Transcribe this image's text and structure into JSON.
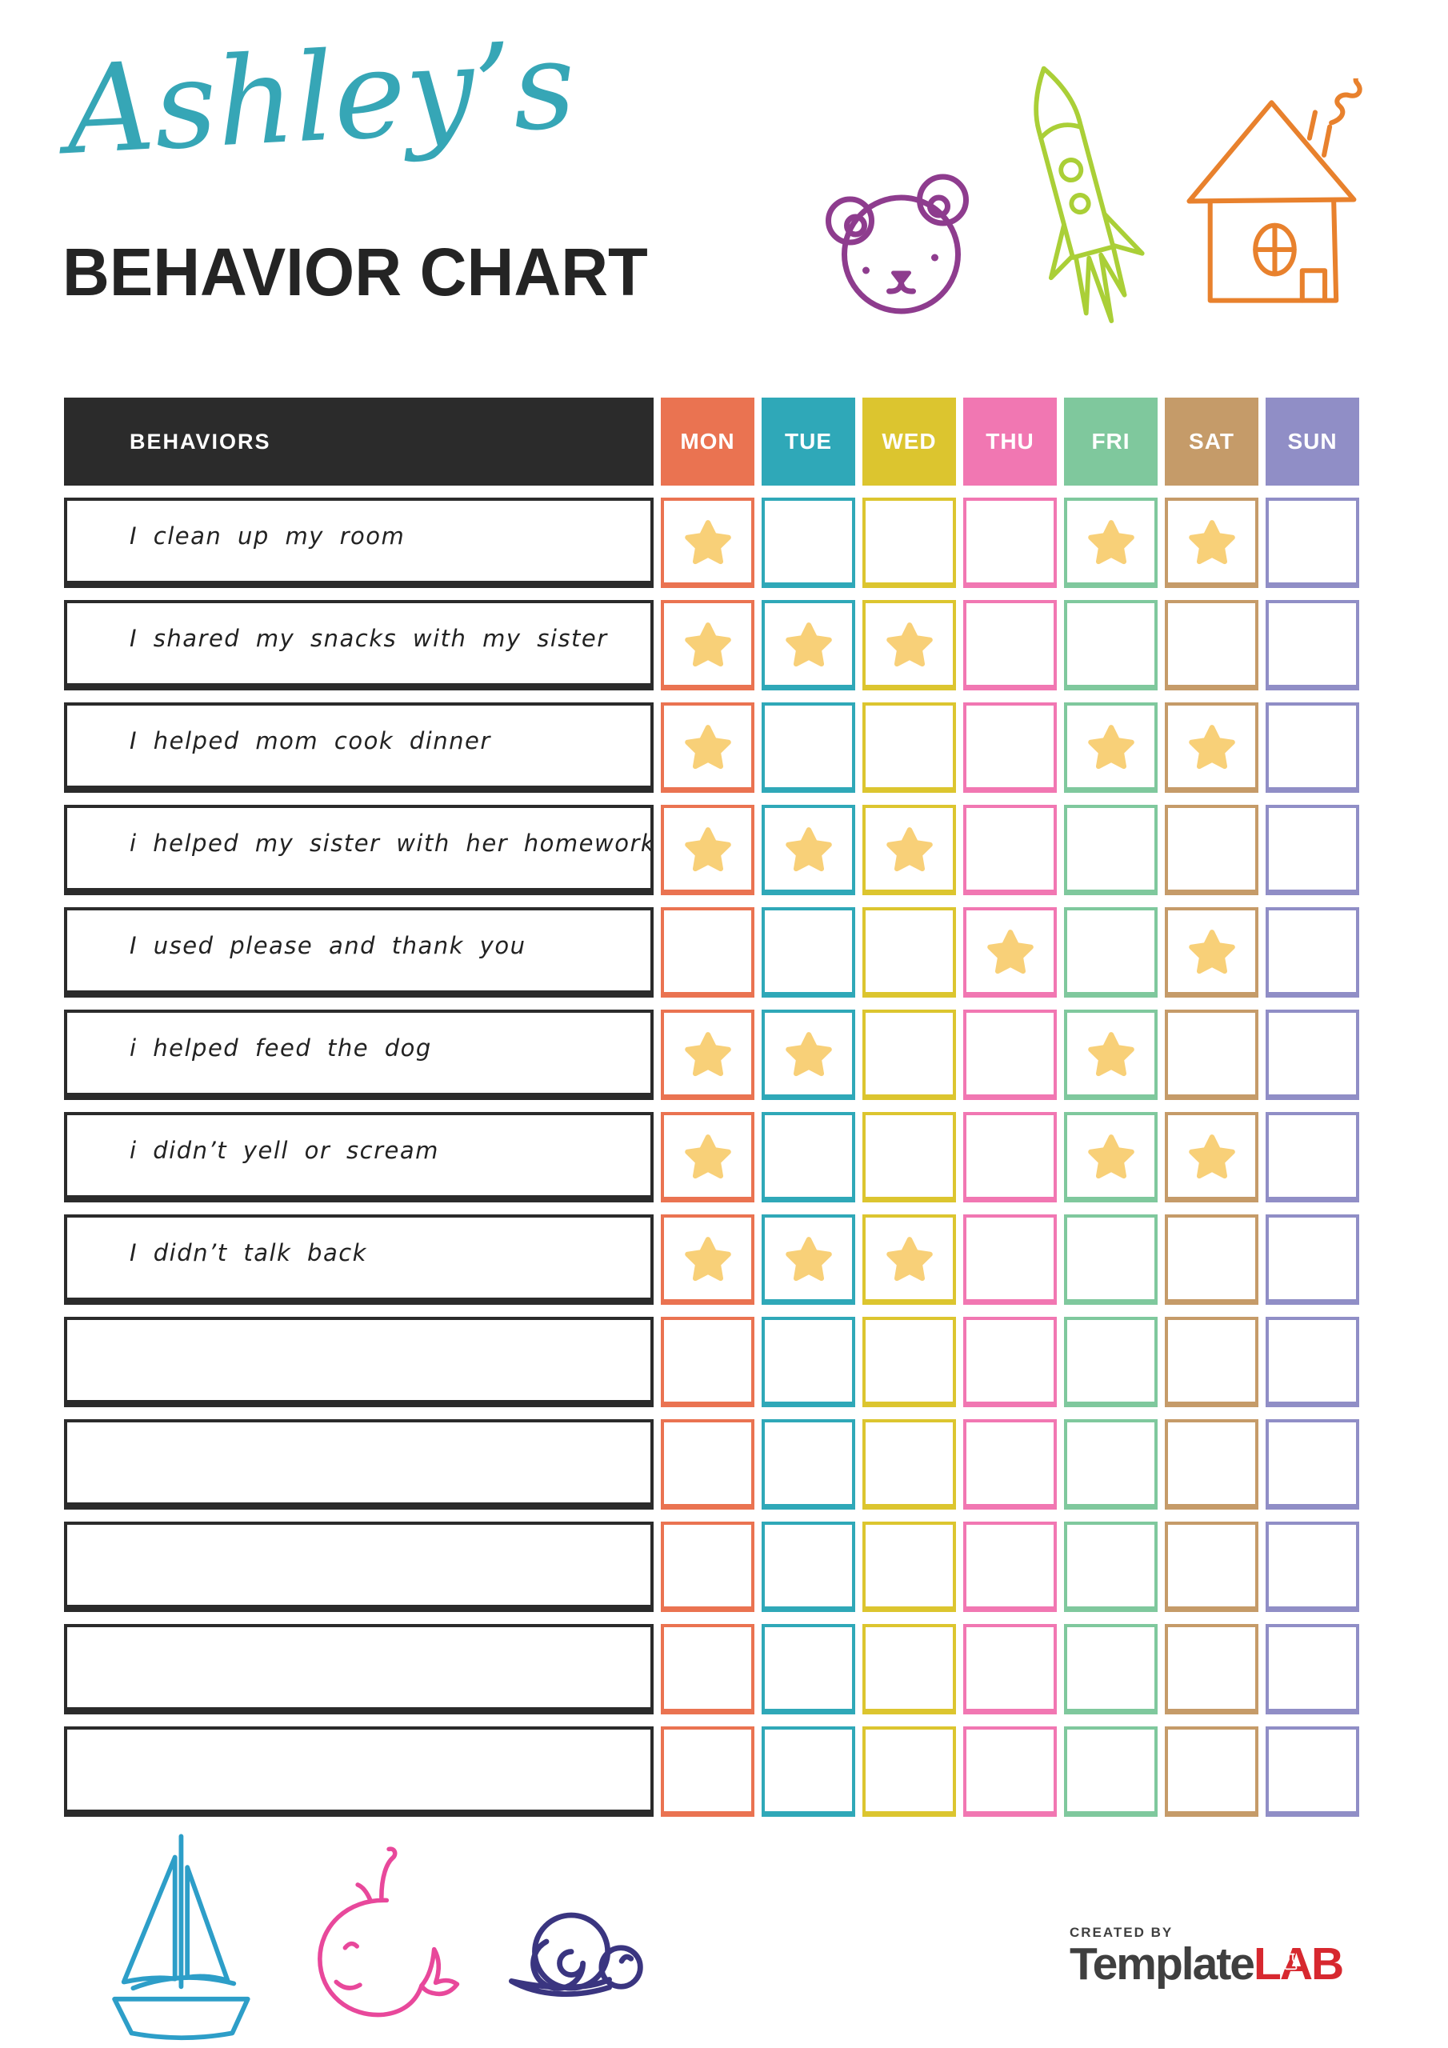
{
  "title": {
    "script": "Ashley’s",
    "main": "BEHAVIOR CHART"
  },
  "colors": {
    "accent_teal": "#36A6B6",
    "header_black": "#2B2B2B",
    "star": "#F8D078",
    "bear": "#8E3C8E",
    "rocket": "#AACF37",
    "house": "#E8812D",
    "sailboat": "#2D9EC8",
    "whale": "#E8489B",
    "snail": "#3A3580",
    "logo_gray": "#3F3F3F",
    "logo_red": "#D7282F"
  },
  "icons": [
    "teddy-bear-icon",
    "rocket-icon",
    "house-icon",
    "sailboat-icon",
    "whale-icon",
    "snail-icon",
    "star-icon",
    "flask-icon"
  ],
  "table": {
    "behaviors_header": "BEHAVIORS",
    "days": [
      {
        "label": "MON",
        "color": "#EA7351"
      },
      {
        "label": "TUE",
        "color": "#2FA8B8"
      },
      {
        "label": "WED",
        "color": "#DCC52F"
      },
      {
        "label": "THU",
        "color": "#F177B2"
      },
      {
        "label": "FRI",
        "color": "#7FC89D"
      },
      {
        "label": "SAT",
        "color": "#C59B69"
      },
      {
        "label": "SUN",
        "color": "#908EC6"
      }
    ],
    "rows": [
      {
        "label": "I clean up my room",
        "stars": [
          "MON",
          "FRI",
          "SAT"
        ]
      },
      {
        "label": "I shared my snacks with my sister",
        "stars": [
          "MON",
          "TUE",
          "WED"
        ]
      },
      {
        "label": "I helped mom cook dinner",
        "stars": [
          "MON",
          "FRI",
          "SAT"
        ]
      },
      {
        "label": "i helped my sister with her homework",
        "stars": [
          "MON",
          "TUE",
          "WED"
        ]
      },
      {
        "label": "I used please and thank you",
        "stars": [
          "THU",
          "SAT"
        ]
      },
      {
        "label": "i helped feed the dog",
        "stars": [
          "MON",
          "TUE",
          "FRI"
        ]
      },
      {
        "label": "i didn’t yell or scream",
        "stars": [
          "MON",
          "FRI",
          "SAT"
        ]
      },
      {
        "label": "I didn’t talk back",
        "stars": [
          "MON",
          "TUE",
          "WED"
        ]
      },
      {
        "label": "",
        "stars": []
      },
      {
        "label": "",
        "stars": []
      },
      {
        "label": "",
        "stars": []
      },
      {
        "label": "",
        "stars": []
      },
      {
        "label": "",
        "stars": []
      }
    ]
  },
  "footer": {
    "created_by": "CREATED BY",
    "brand_template": "Template",
    "brand_lab": "LAB"
  }
}
